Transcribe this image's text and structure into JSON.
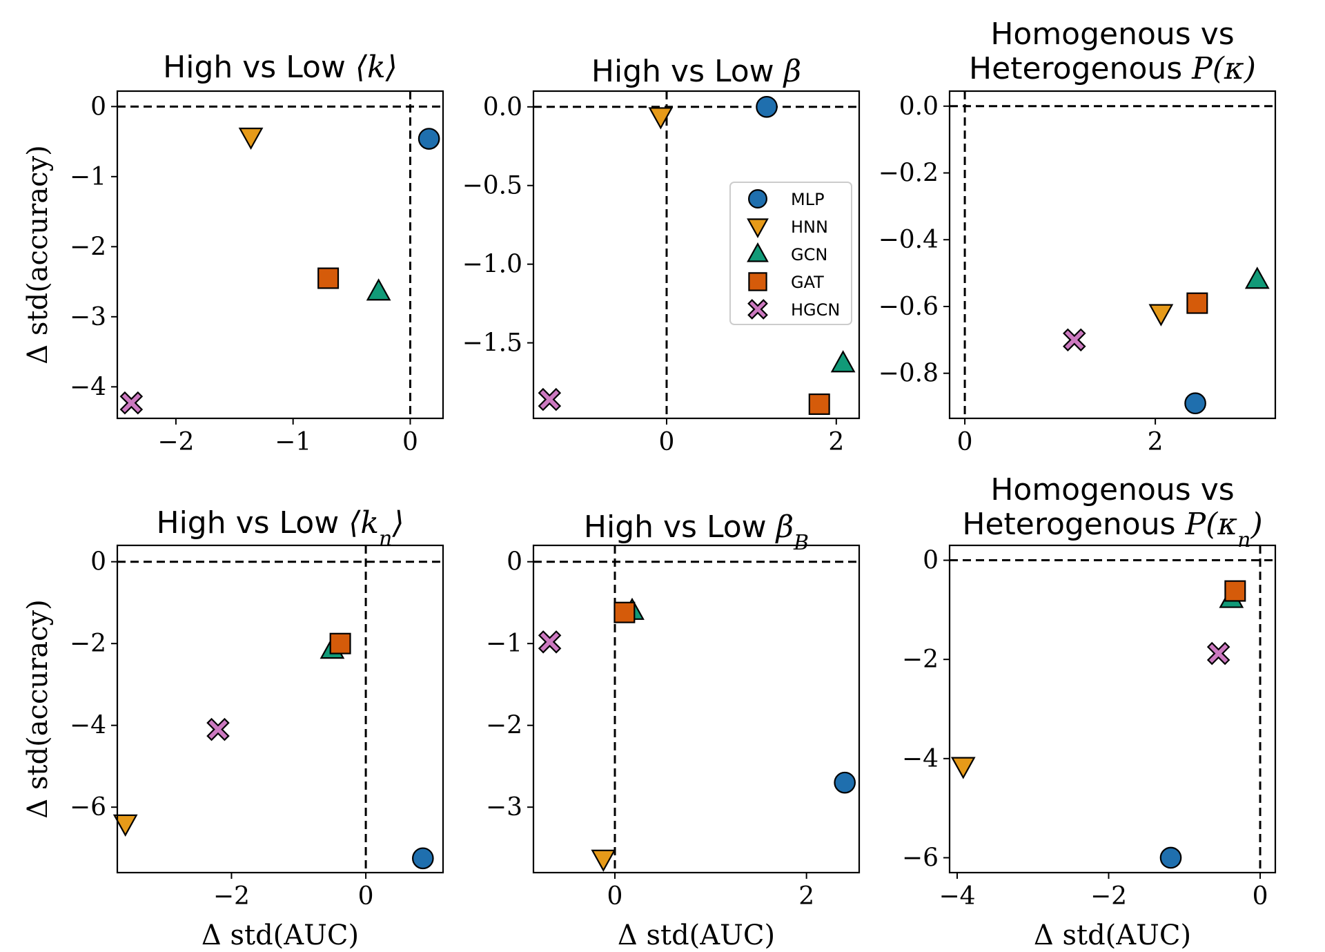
{
  "figure": "scatter grid",
  "legend": {
    "entries": [
      {
        "key": "MLP",
        "label": "MLP",
        "marker": "circle",
        "color": "#1f6fae"
      },
      {
        "key": "HNN",
        "label": "HNN",
        "marker": "triangle-down",
        "color": "#e69a19"
      },
      {
        "key": "GCN",
        "label": "GCN",
        "marker": "triangle-up",
        "color": "#119a78"
      },
      {
        "key": "GAT",
        "label": "GAT",
        "marker": "square",
        "color": "#d55b0a"
      },
      {
        "key": "HGCN",
        "label": "HGCN",
        "marker": "x",
        "color": "#cc79c0"
      }
    ],
    "location": "center-right of top-middle panel"
  },
  "chart_data": [
    {
      "type": "scatter",
      "title_lines": [
        [
          "High vs Low ",
          "⟨k⟩"
        ]
      ],
      "xlabel": "",
      "ylabel": "Δ std(accuracy)",
      "xlim": [
        -2.5,
        0.28
      ],
      "ylim": [
        -4.45,
        0.22
      ],
      "xticks": [
        -2,
        -1,
        0
      ],
      "xticklabels": [
        "−2",
        "−1",
        "0"
      ],
      "yticks": [
        0,
        -1,
        -2,
        -3,
        -4
      ],
      "yticklabels": [
        "0",
        "−1",
        "−2",
        "−3",
        "−4"
      ],
      "refline_x": 0,
      "refline_y": 0,
      "points": [
        {
          "series": "MLP",
          "x": 0.16,
          "y": -0.46
        },
        {
          "series": "HNN",
          "x": -1.36,
          "y": -0.43
        },
        {
          "series": "GCN",
          "x": -0.27,
          "y": -2.64
        },
        {
          "series": "GAT",
          "x": -0.7,
          "y": -2.45
        },
        {
          "series": "HGCN",
          "x": -2.38,
          "y": -4.23
        }
      ]
    },
    {
      "type": "scatter",
      "title_lines": [
        [
          "High vs Low ",
          "β"
        ]
      ],
      "xlabel": "",
      "ylabel": "",
      "xlim": [
        -1.57,
        2.27
      ],
      "ylim": [
        -1.98,
        0.1
      ],
      "xticks": [
        0,
        2
      ],
      "xticklabels": [
        "0",
        "2"
      ],
      "yticks": [
        0,
        -0.5,
        -1.0,
        -1.5
      ],
      "yticklabels": [
        "0.0",
        "−0.5",
        "−1.0",
        "−1.5"
      ],
      "refline_x": 0,
      "refline_y": 0,
      "legend_here": true,
      "points": [
        {
          "series": "MLP",
          "x": 1.18,
          "y": 0.0
        },
        {
          "series": "HNN",
          "x": -0.07,
          "y": -0.06
        },
        {
          "series": "GCN",
          "x": 2.08,
          "y": -1.63
        },
        {
          "series": "GAT",
          "x": 1.8,
          "y": -1.89
        },
        {
          "series": "HGCN",
          "x": -1.38,
          "y": -1.86
        }
      ]
    },
    {
      "type": "scatter",
      "title_lines": [
        [
          "Homogenous vs"
        ],
        [
          "Heterogenous ",
          "P(κ)"
        ]
      ],
      "xlabel": "",
      "ylabel": "",
      "xlim": [
        -0.16,
        3.26
      ],
      "ylim": [
        -0.935,
        0.045
      ],
      "xticks": [
        0,
        2
      ],
      "xticklabels": [
        "0",
        "2"
      ],
      "yticks": [
        0,
        -0.2,
        -0.4,
        -0.6,
        -0.8
      ],
      "yticklabels": [
        "0.0",
        "−0.2",
        "−0.4",
        "−0.6",
        "−0.8"
      ],
      "refline_x": 0,
      "refline_y": 0,
      "points": [
        {
          "series": "MLP",
          "x": 2.42,
          "y": -0.89
        },
        {
          "series": "HNN",
          "x": 2.06,
          "y": -0.62
        },
        {
          "series": "GCN",
          "x": 3.07,
          "y": -0.52
        },
        {
          "series": "GAT",
          "x": 2.44,
          "y": -0.59
        },
        {
          "series": "HGCN",
          "x": 1.15,
          "y": -0.7
        }
      ]
    },
    {
      "type": "scatter",
      "title_lines": [
        [
          "High vs Low ",
          "⟨k",
          "n",
          "⟩"
        ]
      ],
      "xlabel": "Δ std(AUC)",
      "ylabel": "Δ std(accuracy)",
      "xlim": [
        -3.7,
        1.15
      ],
      "ylim": [
        -7.6,
        0.4
      ],
      "xticks": [
        -2,
        0
      ],
      "xticklabels": [
        "−2",
        "0"
      ],
      "yticks": [
        0,
        -2,
        -4,
        -6
      ],
      "yticklabels": [
        "0",
        "−2",
        "−4",
        "−6"
      ],
      "refline_x": 0,
      "refline_y": 0,
      "points": [
        {
          "series": "MLP",
          "x": 0.85,
          "y": -7.25
        },
        {
          "series": "HNN",
          "x": -3.58,
          "y": -6.4
        },
        {
          "series": "GCN",
          "x": -0.5,
          "y": -2.15
        },
        {
          "series": "GAT",
          "x": -0.38,
          "y": -2.0
        },
        {
          "series": "HGCN",
          "x": -2.2,
          "y": -4.1
        }
      ]
    },
    {
      "type": "scatter",
      "title_lines": [
        [
          "High vs Low ",
          "β",
          "B"
        ]
      ],
      "xlabel": "Δ std(AUC)",
      "ylabel": "",
      "xlim": [
        -0.85,
        2.55
      ],
      "ylim": [
        -3.8,
        0.2
      ],
      "xticks": [
        0,
        2
      ],
      "xticklabels": [
        "0",
        "2"
      ],
      "yticks": [
        0,
        -1,
        -2,
        -3
      ],
      "yticklabels": [
        "0",
        "−1",
        "−2",
        "−3"
      ],
      "refline_x": 0,
      "refline_y": 0,
      "points": [
        {
          "series": "MLP",
          "x": 2.4,
          "y": -2.7
        },
        {
          "series": "HNN",
          "x": -0.12,
          "y": -3.63
        },
        {
          "series": "GCN",
          "x": 0.18,
          "y": -0.6
        },
        {
          "series": "GAT",
          "x": 0.1,
          "y": -0.62
        },
        {
          "series": "HGCN",
          "x": -0.68,
          "y": -0.98
        }
      ]
    },
    {
      "type": "scatter",
      "title_lines": [
        [
          "Homogenous vs"
        ],
        [
          "Heterogenous ",
          "P(κ",
          "n",
          ")"
        ]
      ],
      "xlabel": "Δ std(AUC)",
      "ylabel": "",
      "xlim": [
        -4.1,
        0.2
      ],
      "ylim": [
        -6.3,
        0.3
      ],
      "xticks": [
        -4,
        -2,
        0
      ],
      "xticklabels": [
        "−4",
        "−2",
        "0"
      ],
      "yticks": [
        0,
        -2,
        -4,
        -6
      ],
      "yticklabels": [
        "0",
        "−2",
        "−4",
        "−6"
      ],
      "refline_x": 0,
      "refline_y": 0,
      "points": [
        {
          "series": "MLP",
          "x": -1.18,
          "y": -6.0
        },
        {
          "series": "HNN",
          "x": -3.92,
          "y": -4.15
        },
        {
          "series": "GCN",
          "x": -0.38,
          "y": -0.78
        },
        {
          "series": "GAT",
          "x": -0.33,
          "y": -0.62
        },
        {
          "series": "HGCN",
          "x": -0.55,
          "y": -1.88
        }
      ]
    }
  ]
}
